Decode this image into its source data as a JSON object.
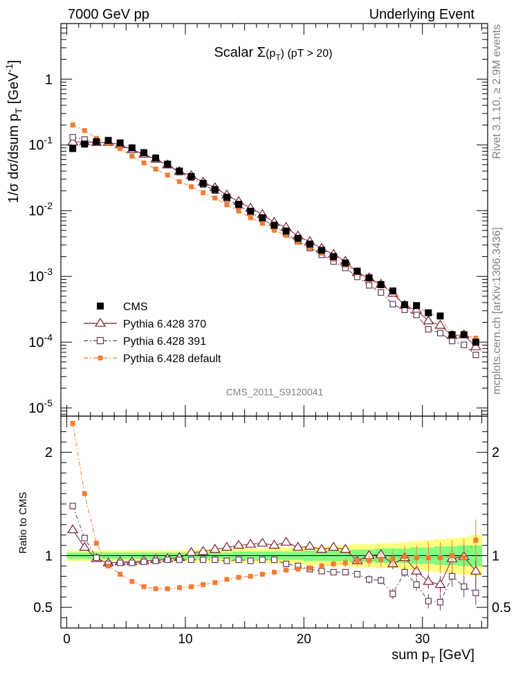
{
  "header": {
    "left": "7000 GeV pp",
    "right": "Underlying Event"
  },
  "side_labels": {
    "rivet": "Rivet 3.1.10, ≥ 2.9M events",
    "mcplots": "mcplots.cern.ch [arXiv:1306.3436]"
  },
  "analysis_label": "CMS_2011_S9120041",
  "colors": {
    "cms": "#000000",
    "py370": "#7b1a2e",
    "py391": "#5e3a5a",
    "pydef": "#f47c30",
    "band_yellow": "#ffff80",
    "band_green": "#80ff80"
  },
  "chart_data": {
    "type": "scatter",
    "title_prefix": "Scalar ",
    "title_sigma": "Σ",
    "title_arg": "(p",
    "title_arg_sub": "T",
    "title_arg_close": ")",
    "title_cut": " (pT > 20)",
    "xlabel": "sum p",
    "xlabel_sub": "T",
    "xlabel_unit": " [GeV]",
    "ylabel": "1/σ dσ/dsum p",
    "ylabel_sub": "T",
    "ylabel_unit": " [GeV",
    "ylabel_exp": "-1",
    "ylabel_close": "]",
    "ratio_ylabel": "Ratio to CMS",
    "xlim": [
      -0.5,
      35.5
    ],
    "ylim_log": [
      7.5e-06,
      7
    ],
    "ratio_ylim": [
      0.3,
      2.35
    ],
    "x_ticks": [
      "0",
      "10",
      "20",
      "30"
    ],
    "x_tick_values": [
      0,
      10,
      20,
      30
    ],
    "y_ticks": [
      {
        "base": "10",
        "exp": "-5",
        "value": 1e-05
      },
      {
        "base": "10",
        "exp": "-4",
        "value": 0.0001
      },
      {
        "base": "10",
        "exp": "-3",
        "value": 0.001
      },
      {
        "base": "10",
        "exp": "-2",
        "value": 0.01
      },
      {
        "base": "10",
        "exp": "-1",
        "value": 0.1
      },
      {
        "base": "1",
        "exp": "",
        "value": 1
      }
    ],
    "ratio_ticks": [
      {
        "label": "0.5",
        "value": 0.5
      },
      {
        "label": "1",
        "value": 1
      },
      {
        "label": "2",
        "value": 2
      }
    ],
    "x": [
      0.5,
      1.5,
      2.5,
      3.5,
      4.5,
      5.5,
      6.5,
      7.5,
      8.5,
      9.5,
      10.5,
      11.5,
      12.5,
      13.5,
      14.5,
      15.5,
      16.5,
      17.5,
      18.5,
      19.5,
      20.5,
      21.5,
      22.5,
      23.5,
      24.5,
      25.5,
      26.5,
      27.5,
      28.5,
      29.5,
      30.5,
      31.5,
      32.5,
      33.5,
      34.5
    ],
    "cms": [
      0.088,
      0.103,
      0.112,
      0.117,
      0.107,
      0.09,
      0.076,
      0.063,
      0.051,
      0.04,
      0.033,
      0.026,
      0.021,
      0.016,
      0.0125,
      0.0098,
      0.0078,
      0.006,
      0.0049,
      0.0038,
      0.0031,
      0.0025,
      0.002,
      0.0016,
      0.0012,
      0.00095,
      0.00075,
      0.0006,
      0.00037,
      0.00036,
      0.00028,
      0.00025,
      0.00013,
      0.00013,
      0.0001
    ],
    "cms_err": [
      0.0,
      0.0,
      0.0,
      0.0,
      0.0,
      0.0,
      0.0,
      0.0,
      0.0,
      0.0,
      0.0,
      0.0,
      0.0,
      0.0,
      0.0,
      0.0,
      0.0,
      0.0,
      0.0,
      0.0,
      0.0,
      0.0,
      0.0,
      0.0,
      0.0,
      0.0,
      0.0,
      0.0,
      0.0,
      0.0,
      0.0,
      0.0,
      0.0,
      0.0,
      0.0
    ],
    "band_yellow": [
      0.05,
      0.05,
      0.05,
      0.05,
      0.05,
      0.05,
      0.05,
      0.05,
      0.05,
      0.05,
      0.06,
      0.06,
      0.06,
      0.06,
      0.07,
      0.07,
      0.07,
      0.08,
      0.08,
      0.08,
      0.09,
      0.09,
      0.1,
      0.1,
      0.11,
      0.11,
      0.12,
      0.12,
      0.13,
      0.14,
      0.15,
      0.16,
      0.17,
      0.18,
      0.2
    ],
    "band_green": [
      0.03,
      0.03,
      0.03,
      0.03,
      0.03,
      0.03,
      0.03,
      0.03,
      0.03,
      0.03,
      0.03,
      0.03,
      0.03,
      0.03,
      0.04,
      0.04,
      0.04,
      0.04,
      0.04,
      0.04,
      0.05,
      0.05,
      0.05,
      0.05,
      0.06,
      0.06,
      0.07,
      0.07,
      0.07,
      0.08,
      0.08,
      0.09,
      0.09,
      0.1,
      0.1
    ],
    "series": [
      {
        "name": "Pythia 6.428 370",
        "key": "py370",
        "marker": "triangle",
        "ratio": [
          1.25,
          1.08,
          0.97,
          0.93,
          0.94,
          0.94,
          0.95,
          0.96,
          0.97,
          0.98,
          1.03,
          1.04,
          1.06,
          1.08,
          1.1,
          1.11,
          1.12,
          1.1,
          1.13,
          1.08,
          1.09,
          1.06,
          1.08,
          1.06,
          0.95,
          1.0,
          1.01,
          0.92,
          0.98,
          0.85,
          0.75,
          0.72,
          0.97,
          0.99,
          0.85
        ],
        "ratio_err": [
          0.02,
          0.02,
          0.02,
          0.02,
          0.02,
          0.02,
          0.02,
          0.02,
          0.02,
          0.02,
          0.02,
          0.02,
          0.02,
          0.02,
          0.02,
          0.02,
          0.02,
          0.02,
          0.02,
          0.02,
          0.02,
          0.03,
          0.03,
          0.03,
          0.03,
          0.04,
          0.04,
          0.05,
          0.05,
          0.06,
          0.07,
          0.08,
          0.1,
          0.12,
          0.15
        ]
      },
      {
        "name": "Pythia 6.428 391",
        "key": "py391",
        "marker": "square-open",
        "ratio": [
          1.48,
          1.17,
          0.98,
          0.92,
          0.93,
          0.93,
          0.94,
          0.95,
          0.96,
          0.96,
          0.96,
          0.96,
          0.96,
          0.95,
          0.96,
          0.95,
          0.96,
          0.96,
          0.92,
          0.9,
          0.87,
          0.85,
          0.84,
          0.84,
          0.82,
          0.77,
          0.76,
          0.63,
          0.84,
          0.72,
          0.56,
          0.55,
          0.8,
          0.7,
          0.64
        ],
        "ratio_err": [
          0.02,
          0.02,
          0.02,
          0.02,
          0.02,
          0.02,
          0.02,
          0.02,
          0.02,
          0.02,
          0.02,
          0.02,
          0.02,
          0.02,
          0.02,
          0.02,
          0.02,
          0.02,
          0.02,
          0.02,
          0.02,
          0.03,
          0.03,
          0.03,
          0.03,
          0.04,
          0.04,
          0.05,
          0.05,
          0.06,
          0.07,
          0.08,
          0.1,
          0.1,
          0.12
        ]
      },
      {
        "name": "Pythia 6.428 default",
        "key": "pydef",
        "marker": "square-filled",
        "ratio": [
          2.28,
          1.6,
          1.12,
          0.9,
          0.82,
          0.75,
          0.7,
          0.68,
          0.68,
          0.69,
          0.7,
          0.72,
          0.74,
          0.77,
          0.79,
          0.8,
          0.82,
          0.84,
          0.86,
          0.87,
          0.88,
          0.9,
          0.92,
          0.93,
          0.95,
          0.95,
          0.96,
          0.97,
          0.99,
          0.98,
          0.98,
          0.98,
          1.0,
          0.98,
          1.15
        ],
        "ratio_err": [
          0.02,
          0.02,
          0.02,
          0.02,
          0.02,
          0.02,
          0.02,
          0.02,
          0.02,
          0.02,
          0.02,
          0.02,
          0.02,
          0.02,
          0.02,
          0.02,
          0.02,
          0.02,
          0.02,
          0.02,
          0.03,
          0.03,
          0.04,
          0.04,
          0.05,
          0.06,
          0.07,
          0.08,
          0.1,
          0.12,
          0.15,
          0.15,
          0.15,
          0.18,
          0.2
        ]
      }
    ],
    "legend": [
      {
        "label": "CMS",
        "key": "cms",
        "marker": "square-big",
        "line": "none"
      },
      {
        "label": "Pythia 6.428 370",
        "key": "py370",
        "marker": "triangle",
        "line": "solid"
      },
      {
        "label": "Pythia 6.428 391",
        "key": "py391",
        "marker": "square-open",
        "line": "dashdot"
      },
      {
        "label": "Pythia 6.428 default",
        "key": "pydef",
        "marker": "square-filled",
        "line": "dashdot"
      }
    ],
    "legend_position": "left-middle"
  }
}
